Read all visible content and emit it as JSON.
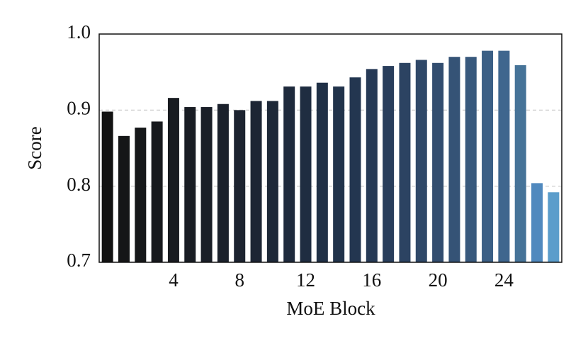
{
  "chart_data": {
    "type": "bar",
    "x_label": "MoE Block",
    "y_label": "Score",
    "categories": [
      null,
      null,
      null,
      null,
      "4",
      null,
      null,
      null,
      "8",
      null,
      null,
      null,
      "12",
      null,
      null,
      null,
      "16",
      null,
      null,
      null,
      "20",
      null,
      null,
      null,
      "24",
      null,
      null,
      null
    ],
    "values": [
      0.898,
      0.866,
      0.877,
      0.885,
      0.916,
      0.904,
      0.904,
      0.908,
      0.9,
      0.912,
      0.912,
      0.931,
      0.931,
      0.936,
      0.931,
      0.943,
      0.954,
      0.958,
      0.962,
      0.966,
      0.962,
      0.97,
      0.97,
      0.978,
      0.978,
      0.959,
      0.804,
      0.792
    ],
    "colors": [
      "#131313",
      "#151617",
      "#16181a",
      "#17191d",
      "#181b20",
      "#191d24",
      "#1a1f28",
      "#1b212c",
      "#1c2330",
      "#1c2534",
      "#1d2838",
      "#1e2a3c",
      "#1f2d41",
      "#203046",
      "#21334b",
      "#233650",
      "#263a56",
      "#293e5c",
      "#2c4362",
      "#2f4868",
      "#324d6f",
      "#355376",
      "#38597d",
      "#3b5f85",
      "#3f668e",
      "#467398",
      "#5089be",
      "#5b9dcb"
    ],
    "ylim": [
      0.7,
      1.0
    ],
    "yticks": [
      0.7,
      0.8,
      0.9,
      {
        "value": 1.0,
        "label": "1.0"
      }
    ],
    "grid": true
  }
}
